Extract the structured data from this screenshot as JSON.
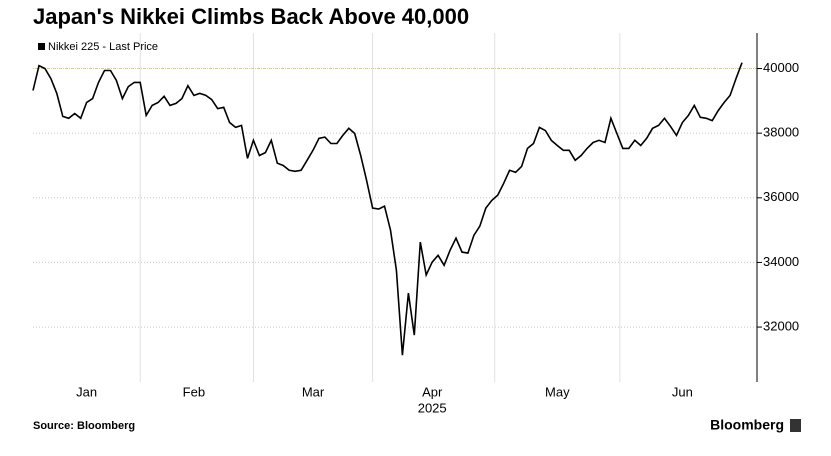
{
  "chart_data": {
    "type": "line",
    "title": "Japan's Nikkei Climbs Back Above 40,000",
    "xlabel": "2025",
    "source": "Source: Bloomberg",
    "brand": "Bloomberg",
    "categories": [
      null,
      null,
      null,
      null,
      null,
      null,
      null,
      null,
      null,
      "Jan",
      null,
      null,
      null,
      null,
      null,
      null,
      null,
      null,
      null,
      null,
      null,
      null,
      null,
      null,
      null,
      null,
      null,
      "Feb",
      null,
      null,
      null,
      null,
      null,
      null,
      null,
      null,
      null,
      null,
      null,
      null,
      null,
      null,
      null,
      null,
      null,
      null,
      null,
      "Mar",
      null,
      null,
      null,
      null,
      null,
      null,
      null,
      null,
      null,
      null,
      null,
      null,
      null,
      null,
      null,
      null,
      null,
      null,
      null,
      "Apr",
      null,
      null,
      null,
      null,
      null,
      null,
      null,
      null,
      null,
      null,
      null,
      null,
      null,
      null,
      null,
      null,
      null,
      null,
      null,
      null,
      "May",
      null,
      null,
      null,
      null,
      null,
      null,
      null,
      null,
      null,
      null,
      null,
      null,
      null,
      null,
      null,
      null,
      null,
      null,
      null,
      null,
      "Jun",
      null,
      null,
      null,
      null,
      null,
      null,
      null,
      null,
      null,
      null
    ],
    "series": [
      {
        "name": "Nikkei 225 - Last Price",
        "color": "#000000",
        "values": [
          39320,
          40090,
          40000,
          39690,
          39230,
          38520,
          38460,
          38610,
          38460,
          38950,
          39070,
          39570,
          39940,
          39940,
          39630,
          39070,
          39440,
          39570,
          39570,
          38550,
          38860,
          38950,
          39140,
          38860,
          38920,
          39070,
          39470,
          39170,
          39230,
          39170,
          39040,
          38760,
          38800,
          38330,
          38180,
          38240,
          37220,
          37780,
          37310,
          37400,
          37780,
          37070,
          37000,
          36850,
          36820,
          36850,
          37160,
          37470,
          37840,
          37880,
          37680,
          37680,
          37930,
          38150,
          37990,
          37310,
          36540,
          35680,
          35650,
          35740,
          35000,
          33760,
          31130,
          33050,
          31750,
          34630,
          33610,
          34010,
          34220,
          33910,
          34380,
          34750,
          34320,
          34290,
          34840,
          35120,
          35680,
          35920,
          36080,
          36450,
          36850,
          36790,
          36970,
          37530,
          37680,
          38180,
          38080,
          37780,
          37620,
          37470,
          37470,
          37160,
          37310,
          37530,
          37710,
          37780,
          37710,
          38460,
          37990,
          37530,
          37530,
          37780,
          37620,
          37840,
          38150,
          38240,
          38460,
          38210,
          37930,
          38330,
          38550,
          38860,
          38490,
          38460,
          38390,
          38700,
          38950,
          39170,
          39690,
          40180
        ]
      }
    ],
    "ylim": [
      30300,
      41100
    ],
    "yticks": [
      32000,
      34000,
      36000,
      38000,
      40000
    ],
    "grid": true,
    "hline": {
      "value": 40000,
      "color": "#e6cf5a"
    }
  }
}
